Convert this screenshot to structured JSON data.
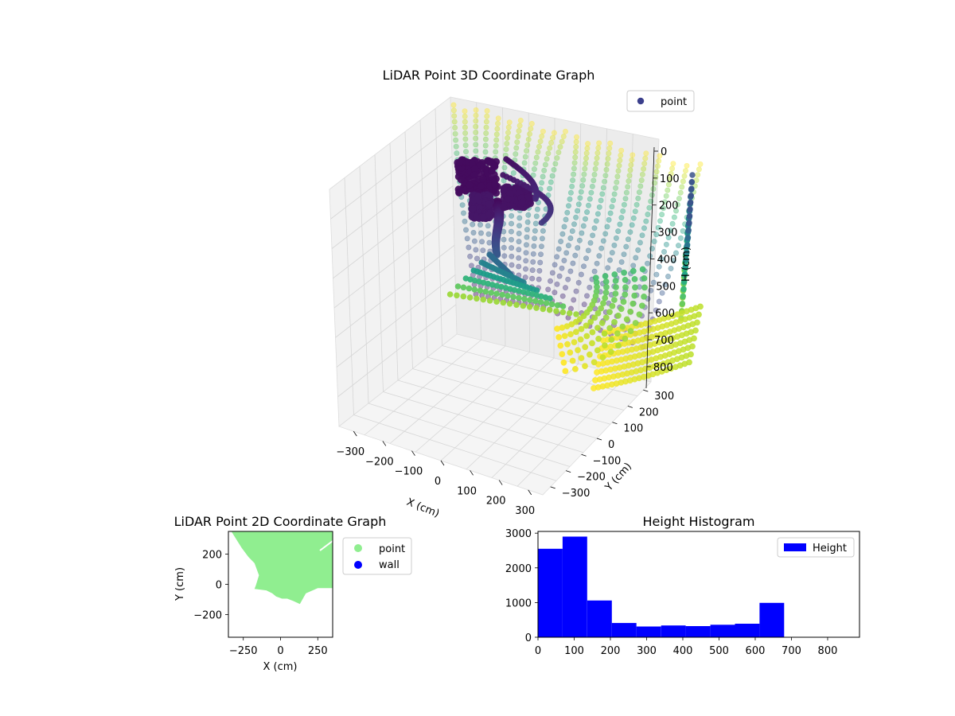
{
  "chart_data": [
    {
      "type": "scatter3d",
      "title": "LiDAR Point 3D Coordinate Graph",
      "xlabel": "X (cm)",
      "ylabel": "Y (cm)",
      "zlabel": "H (cm)",
      "xticks": [
        -300,
        -200,
        -100,
        0,
        100,
        200,
        300
      ],
      "yticks": [
        -300,
        -200,
        -100,
        0,
        100,
        200,
        300
      ],
      "zticks": [
        0,
        100,
        200,
        300,
        400,
        500,
        600,
        700,
        800
      ],
      "xtick_labels": [
        "−300",
        "−200",
        "−100",
        "0",
        "100",
        "200",
        "300"
      ],
      "ytick_labels": [
        "−300",
        "−200",
        "−100",
        "0",
        "100",
        "200",
        "300"
      ],
      "ztick_labels": [
        "0",
        "100",
        "200",
        "300",
        "400",
        "500",
        "600",
        "700",
        "800"
      ],
      "xlim": [
        -350,
        350
      ],
      "ylim": [
        -350,
        350
      ],
      "zlim": [
        0,
        880
      ],
      "zaxis_inverted": true,
      "colormap": "viridis",
      "legend": {
        "label": "point",
        "color": "#3b3f8c",
        "location": "upper-right"
      }
    },
    {
      "type": "scatter",
      "title": "LiDAR Point 2D Coordinate Graph",
      "xlabel": "X (cm)",
      "ylabel": "Y (cm)",
      "xticks": [
        -250,
        0,
        250
      ],
      "yticks": [
        200,
        0,
        -200
      ],
      "xtick_labels": [
        "−250",
        "0",
        "250"
      ],
      "ytick_labels": [
        "200",
        "0",
        "−200"
      ],
      "xlim": [
        -350,
        350
      ],
      "ylim": [
        -350,
        350
      ],
      "series": [
        {
          "name": "point",
          "color": "#90ee90"
        },
        {
          "name": "wall",
          "color": "#0000ff"
        }
      ],
      "region_outline_cm": [
        [
          -350,
          350
        ],
        [
          350,
          350
        ],
        [
          350,
          -25
        ],
        [
          250,
          -25
        ],
        [
          170,
          -60
        ],
        [
          130,
          -130
        ],
        [
          85,
          -110
        ],
        [
          45,
          -95
        ],
        [
          10,
          -95
        ],
        [
          -30,
          -80
        ],
        [
          -55,
          -60
        ],
        [
          -95,
          -40
        ],
        [
          -175,
          -30
        ],
        [
          -165,
          -5
        ],
        [
          -145,
          60
        ],
        [
          -175,
          140
        ],
        [
          -215,
          180
        ],
        [
          -260,
          240
        ],
        [
          -330,
          350
        ]
      ],
      "legend_location": "outside-right"
    },
    {
      "type": "histogram",
      "title": "Height Histogram",
      "xticks": [
        0,
        100,
        200,
        300,
        400,
        500,
        600,
        700,
        800
      ],
      "yticks": [
        0,
        1000,
        2000,
        3000
      ],
      "xtick_labels": [
        "0",
        "100",
        "200",
        "300",
        "400",
        "500",
        "600",
        "700",
        "800"
      ],
      "ytick_labels": [
        "0",
        "1000",
        "2000",
        "3000"
      ],
      "xlim": [
        0,
        888
      ],
      "ylim": [
        0,
        3050
      ],
      "bins": [
        {
          "x0": 0,
          "x1": 68,
          "count": 2550
        },
        {
          "x0": 68,
          "x1": 136,
          "count": 2900
        },
        {
          "x0": 136,
          "x1": 204,
          "count": 1060
        },
        {
          "x0": 204,
          "x1": 272,
          "count": 410
        },
        {
          "x0": 272,
          "x1": 340,
          "count": 310
        },
        {
          "x0": 340,
          "x1": 408,
          "count": 340
        },
        {
          "x0": 408,
          "x1": 476,
          "count": 320
        },
        {
          "x0": 476,
          "x1": 544,
          "count": 360
        },
        {
          "x0": 544,
          "x1": 612,
          "count": 390
        },
        {
          "x0": 612,
          "x1": 680,
          "count": 990
        }
      ],
      "bar_color": "#0000ff",
      "legend": {
        "label": "Height",
        "location": "upper-right"
      }
    }
  ]
}
